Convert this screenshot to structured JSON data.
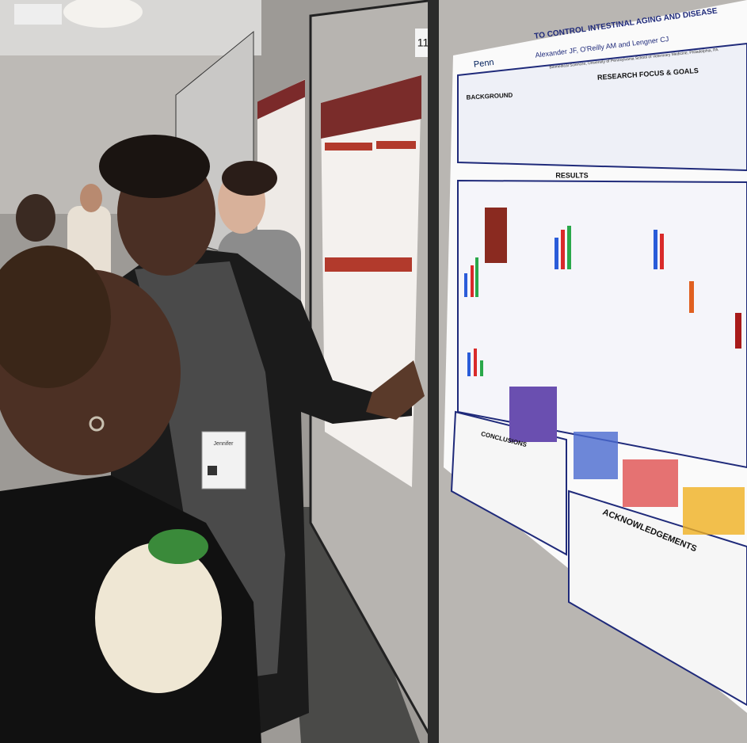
{
  "board_number": "11",
  "poster": {
    "logo": "Penn",
    "title": "TO CONTROL INTESTINAL AGING AND DISEASE",
    "authors": "Alexander JF, O'Reilly AM and Lengner CJ",
    "affiliation": "Biomedical Sciences, University of Pennsylvania School of Veterinary Medicine, Philadelphia, PA",
    "sections": [
      "RESEARCH FOCUS & GOALS",
      "BACKGROUND",
      "RESULTS",
      "CONCLUSIONS",
      "ACKNOWLEDGEMENTS"
    ]
  },
  "badge": {
    "name": "Jennifer"
  }
}
